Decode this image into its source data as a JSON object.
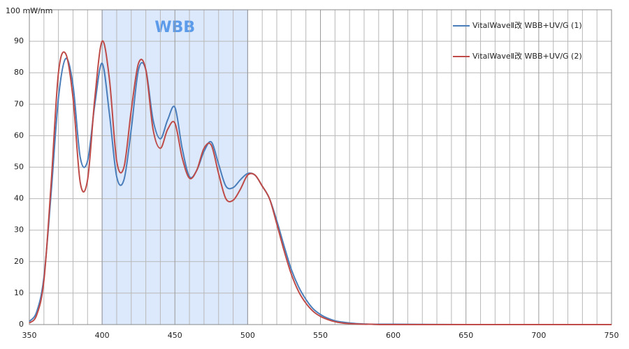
{
  "chart_data": {
    "type": "line",
    "x": [
      350,
      355,
      360,
      365,
      370,
      375,
      380,
      385,
      390,
      395,
      400,
      405,
      410,
      415,
      420,
      425,
      430,
      435,
      440,
      445,
      450,
      455,
      460,
      465,
      470,
      475,
      480,
      485,
      490,
      495,
      500,
      505,
      510,
      515,
      520,
      525,
      530,
      535,
      540,
      545,
      550,
      555,
      560,
      565,
      570,
      575,
      580,
      585,
      590,
      595,
      600,
      650,
      700,
      750
    ],
    "series": [
      {
        "name": "VitalWaveⅡ改 WBB+UV/G (1)",
        "color": "#4a7ebb",
        "values": [
          1,
          4,
          15,
          42,
          72,
          84.5,
          76,
          53,
          52,
          70,
          83,
          67,
          47,
          46,
          62,
          81,
          81,
          65,
          59,
          65,
          69,
          56,
          47,
          49,
          55,
          58,
          51,
          44,
          43.5,
          46,
          48,
          47.5,
          44,
          40,
          33,
          25,
          17.5,
          12,
          8,
          5,
          3.2,
          2,
          1.2,
          0.8,
          0.5,
          0.3,
          0.2,
          0.1,
          0.1,
          0.1,
          0.1,
          0,
          0,
          0
        ]
      },
      {
        "name": "VitalWaveⅡ改 WBB+UV/G (2)",
        "color": "#be4b48",
        "values": [
          0.5,
          3,
          14,
          45,
          80,
          86,
          72,
          45,
          46,
          72,
          90,
          78,
          52,
          50,
          68,
          83,
          81,
          62,
          56,
          62,
          64,
          53,
          46.5,
          49,
          56,
          57,
          48,
          40,
          39.5,
          43,
          47.5,
          47.5,
          44,
          40,
          32,
          23.5,
          16,
          10.5,
          6.8,
          4.2,
          2.6,
          1.6,
          0.9,
          0.5,
          0.3,
          0.2,
          0.1,
          0.1,
          0,
          0,
          0,
          0,
          0,
          0
        ]
      }
    ],
    "xlim": [
      350,
      750
    ],
    "xticks": [
      350,
      400,
      450,
      500,
      550,
      600,
      650,
      700,
      750
    ],
    "xminorticks": [
      360,
      370,
      380,
      390,
      410,
      420,
      430,
      440,
      460,
      470,
      480,
      490,
      510,
      520,
      530,
      540,
      560,
      570,
      580,
      590,
      610,
      620,
      630,
      640,
      660,
      670,
      680,
      690,
      710,
      720,
      730,
      740
    ],
    "ylim": [
      0,
      100
    ],
    "yticks": [
      0,
      10,
      20,
      30,
      40,
      50,
      60,
      70,
      80,
      90,
      {
        "value": 100,
        "label": "100 mW/nm"
      }
    ],
    "grid": true,
    "highlight": {
      "range": [
        400,
        500
      ],
      "label": "WBB",
      "color": "#dce8fb",
      "label_color": "#5b9bea"
    },
    "legend": "upper right"
  }
}
